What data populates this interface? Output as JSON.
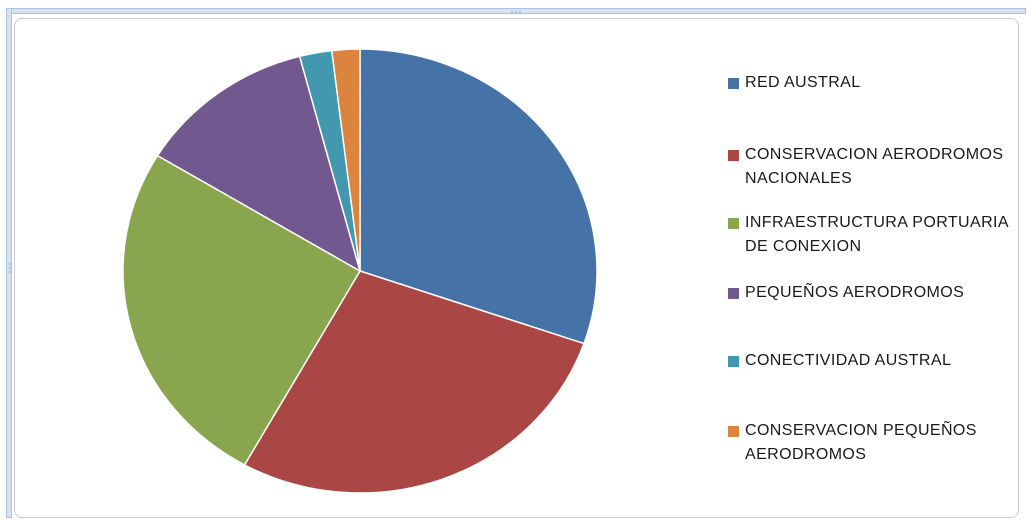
{
  "chart_data": {
    "type": "pie",
    "title": "",
    "start_angle_deg": 0,
    "direction": "clockwise",
    "series": [
      {
        "name": "RED AUSTRAL",
        "value": 30.3,
        "color": "#4572a7"
      },
      {
        "name": "CONSERVACION AERODROMOS NACIONALES",
        "value": 27.8,
        "color": "#aa4643"
      },
      {
        "name": "INFRAESTRUCTURA PORTUARIA DE CONEXION",
        "value": 25.6,
        "color": "#89a54e"
      },
      {
        "name": "PEQUEÑOS AERODROMOS",
        "value": 12.2,
        "color": "#71588f"
      },
      {
        "name": "CONECTIVIDAD AUSTRAL",
        "value": 2.2,
        "color": "#4198af"
      },
      {
        "name": "CONSERVACION PEQUEÑOS AERODROMOS",
        "value": 1.9,
        "color": "#db843d"
      }
    ],
    "legend_position": "right"
  }
}
